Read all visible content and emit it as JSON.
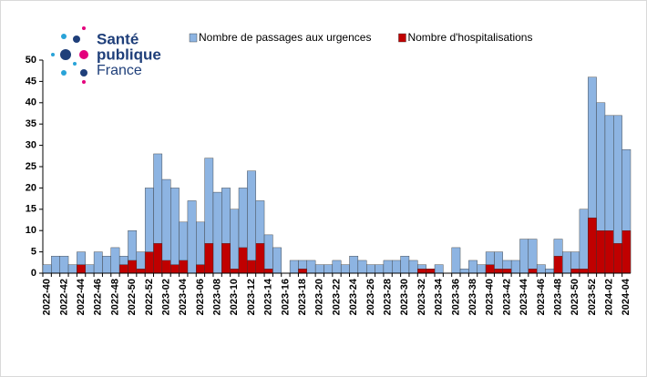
{
  "logo": {
    "line1": "Santé",
    "line2": "publique",
    "line3": "France"
  },
  "chart_data": {
    "type": "bar",
    "overlay": true,
    "categories": [
      "2022-40",
      null,
      "2022-42",
      null,
      "2022-44",
      null,
      "2022-46",
      null,
      "2022-48",
      null,
      "2022-50",
      null,
      "2022-52",
      null,
      "2023-02",
      null,
      "2023-04",
      null,
      "2023-06",
      null,
      "2023-08",
      null,
      "2023-10",
      null,
      "2023-12",
      null,
      "2023-14",
      null,
      "2023-16",
      null,
      "2023-18",
      null,
      "2023-20",
      null,
      "2023-22",
      null,
      "2023-24",
      null,
      "2023-26",
      null,
      "2023-28",
      null,
      "2023-30",
      null,
      "2023-32",
      null,
      "2023-34",
      null,
      "2023-36",
      null,
      "2023-38",
      null,
      "2023-40",
      null,
      "2023-42",
      null,
      "2023-44",
      null,
      "2023-46",
      null,
      "2023-48",
      null,
      "2023-50",
      null,
      "2023-52",
      null,
      "2024-02",
      null,
      "2024-04"
    ],
    "series": [
      {
        "name": "Nombre de passages aux urgences",
        "color": "#8db4e2",
        "values": [
          2,
          4,
          4,
          2,
          5,
          2,
          5,
          4,
          6,
          4,
          10,
          5,
          20,
          28,
          22,
          20,
          12,
          17,
          12,
          27,
          19,
          20,
          15,
          20,
          24,
          17,
          9,
          6,
          0,
          3,
          3,
          3,
          2,
          2,
          3,
          2,
          4,
          3,
          2,
          2,
          3,
          3,
          4,
          3,
          2,
          1,
          2,
          0,
          6,
          1,
          3,
          2,
          5,
          5,
          3,
          3,
          8,
          8,
          2,
          1,
          8,
          5,
          5,
          15,
          46,
          40,
          37,
          37,
          29
        ]
      },
      {
        "name": "Nombre d'hospitalisations",
        "color": "#c00000",
        "values": [
          0,
          0,
          0,
          0,
          2,
          0,
          0,
          0,
          0,
          2,
          3,
          1,
          5,
          7,
          3,
          2,
          3,
          0,
          2,
          7,
          0,
          7,
          1,
          6,
          3,
          7,
          1,
          0,
          0,
          0,
          1,
          0,
          0,
          0,
          0,
          0,
          0,
          0,
          0,
          0,
          0,
          0,
          0,
          0,
          1,
          1,
          0,
          0,
          0,
          0,
          0,
          0,
          2,
          1,
          1,
          0,
          0,
          1,
          0,
          0,
          4,
          0,
          1,
          1,
          13,
          10,
          10,
          7,
          10
        ]
      }
    ],
    "ylim": [
      0,
      50
    ],
    "yticks": [
      0,
      5,
      10,
      15,
      20,
      25,
      30,
      35,
      40,
      45,
      50
    ],
    "grid": false,
    "legend": "top"
  }
}
